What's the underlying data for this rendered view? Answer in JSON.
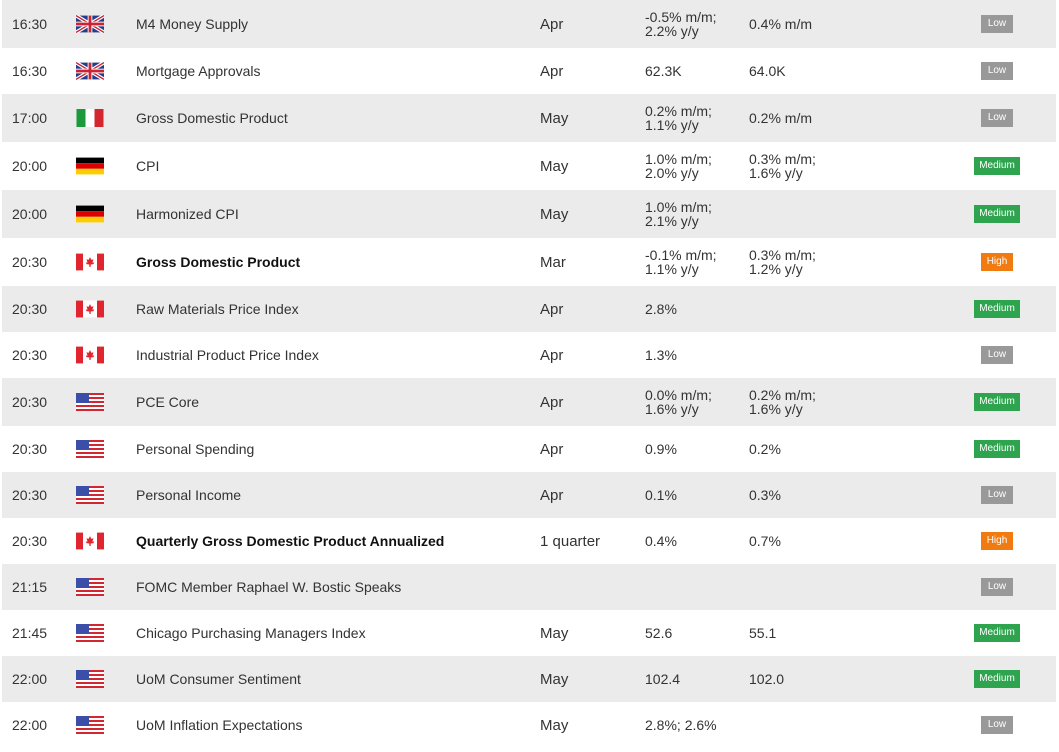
{
  "colors": {
    "low": "#999999",
    "medium": "#2ea44f",
    "high": "#ef7b11"
  },
  "rows": [
    {
      "time": "16:30",
      "country": "uk",
      "flag_icon": "uk-flag-icon",
      "event": "M4 Money Supply",
      "bold": false,
      "period": "Apr",
      "previous": "-0.5% m/m;\n2.2% y/y",
      "forecast": "0.4% m/m",
      "importance": "Low"
    },
    {
      "time": "16:30",
      "country": "uk",
      "flag_icon": "uk-flag-icon",
      "event": "Mortgage Approvals",
      "bold": false,
      "period": "Apr",
      "previous": "62.3K",
      "forecast": "64.0K",
      "importance": "Low"
    },
    {
      "time": "17:00",
      "country": "italy",
      "flag_icon": "italy-flag-icon",
      "event": "Gross Domestic Product",
      "bold": false,
      "period": "May",
      "previous": "0.2% m/m;\n1.1% y/y",
      "forecast": "0.2% m/m",
      "importance": "Low"
    },
    {
      "time": "20:00",
      "country": "germany",
      "flag_icon": "germany-flag-icon",
      "event": "CPI",
      "bold": false,
      "period": "May",
      "previous": "1.0% m/m;\n2.0% y/y",
      "forecast": "0.3% m/m;\n1.6% y/y",
      "importance": "Medium"
    },
    {
      "time": "20:00",
      "country": "germany",
      "flag_icon": "germany-flag-icon",
      "event": "Harmonized CPI",
      "bold": false,
      "period": "May",
      "previous": "1.0% m/m;\n2.1% y/y",
      "forecast": "",
      "importance": "Medium"
    },
    {
      "time": "20:30",
      "country": "canada",
      "flag_icon": "canada-flag-icon",
      "event": "Gross Domestic Product",
      "bold": true,
      "period": "Mar",
      "previous": "-0.1% m/m;\n1.1% y/y",
      "forecast": "0.3% m/m;\n1.2% y/y",
      "importance": "High"
    },
    {
      "time": "20:30",
      "country": "canada",
      "flag_icon": "canada-flag-icon",
      "event": "Raw Materials Price Index",
      "bold": false,
      "period": "Apr",
      "previous": "2.8%",
      "forecast": "",
      "importance": "Medium"
    },
    {
      "time": "20:30",
      "country": "canada",
      "flag_icon": "canada-flag-icon",
      "event": "Industrial Product Price Index",
      "bold": false,
      "period": "Apr",
      "previous": "1.3%",
      "forecast": "",
      "importance": "Low"
    },
    {
      "time": "20:30",
      "country": "us",
      "flag_icon": "us-flag-icon",
      "event": "PCE Core",
      "bold": false,
      "period": "Apr",
      "previous": "0.0% m/m;\n1.6% y/y",
      "forecast": "0.2% m/m;\n1.6% y/y",
      "importance": "Medium"
    },
    {
      "time": "20:30",
      "country": "us",
      "flag_icon": "us-flag-icon",
      "event": "Personal Spending",
      "bold": false,
      "period": "Apr",
      "previous": "0.9%",
      "forecast": "0.2%",
      "importance": "Medium"
    },
    {
      "time": "20:30",
      "country": "us",
      "flag_icon": "us-flag-icon",
      "event": "Personal Income",
      "bold": false,
      "period": "Apr",
      "previous": "0.1%",
      "forecast": "0.3%",
      "importance": "Low"
    },
    {
      "time": "20:30",
      "country": "canada",
      "flag_icon": "canada-flag-icon",
      "event": "Quarterly Gross Domestic Product Annualized",
      "bold": true,
      "period": "1 quarter",
      "previous": "0.4%",
      "forecast": "0.7%",
      "importance": "High"
    },
    {
      "time": "21:15",
      "country": "us",
      "flag_icon": "us-flag-icon",
      "event": "FOMC Member Raphael W. Bostic Speaks",
      "bold": false,
      "period": "",
      "previous": "",
      "forecast": "",
      "importance": "Low"
    },
    {
      "time": "21:45",
      "country": "us",
      "flag_icon": "us-flag-icon",
      "event": "Chicago Purchasing Managers Index",
      "bold": false,
      "period": "May",
      "previous": "52.6",
      "forecast": "55.1",
      "importance": "Medium"
    },
    {
      "time": "22:00",
      "country": "us",
      "flag_icon": "us-flag-icon",
      "event": "UoM Consumer Sentiment",
      "bold": false,
      "period": "May",
      "previous": "102.4",
      "forecast": "102.0",
      "importance": "Medium"
    },
    {
      "time": "22:00",
      "country": "us",
      "flag_icon": "us-flag-icon",
      "event": "UoM Inflation Expectations",
      "bold": false,
      "period": "May",
      "previous": "2.8%; 2.6%",
      "forecast": "",
      "importance": "Low"
    }
  ]
}
